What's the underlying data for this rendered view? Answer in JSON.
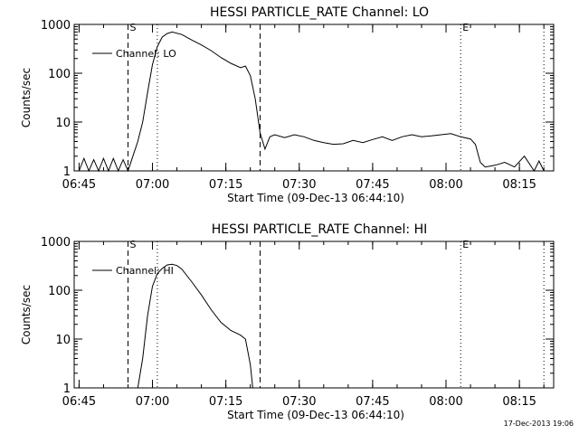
{
  "chart_data": [
    {
      "type": "line",
      "title": "HESSI PARTICLE_RATE Channel: LO",
      "xlabel": "Start Time (09-Dec-13 06:44:10)",
      "ylabel": "Counts/sec",
      "yscale": "log",
      "ylim": [
        1,
        1000
      ],
      "xlim": [
        "06:44",
        "08:22"
      ],
      "xticks": [
        "06:45",
        "07:00",
        "07:15",
        "07:30",
        "07:45",
        "08:00",
        "08:15"
      ],
      "yticks": [
        "1",
        "10",
        "100",
        "1000"
      ],
      "legend": {
        "label": "Channel: LO",
        "position": "top-left"
      },
      "markers": [
        {
          "label": "S",
          "time": "06:55",
          "style": "dashed"
        },
        {
          "label": "",
          "time": "07:01",
          "style": "dotted"
        },
        {
          "label": "",
          "time": "07:22",
          "style": "dashed"
        },
        {
          "label": "E",
          "time": "08:03",
          "style": "dotted"
        },
        {
          "label": "",
          "time": "08:20",
          "style": "dotted"
        }
      ],
      "series": [
        {
          "name": "Channel: LO",
          "points": [
            [
              "06:45",
              1
            ],
            [
              "06:46",
              1.8
            ],
            [
              "06:47",
              1
            ],
            [
              "06:48",
              1.7
            ],
            [
              "06:49",
              1
            ],
            [
              "06:50",
              1.8
            ],
            [
              "06:51",
              1
            ],
            [
              "06:52",
              1.8
            ],
            [
              "06:53",
              1
            ],
            [
              "06:54",
              1.7
            ],
            [
              "06:55",
              1
            ],
            [
              "06:56",
              2
            ],
            [
              "06:57",
              4
            ],
            [
              "06:58",
              10
            ],
            [
              "06:59",
              40
            ],
            [
              "07:00",
              150
            ],
            [
              "07:01",
              350
            ],
            [
              "07:02",
              550
            ],
            [
              "07:03",
              650
            ],
            [
              "07:04",
              700
            ],
            [
              "07:06",
              620
            ],
            [
              "07:08",
              480
            ],
            [
              "07:10",
              380
            ],
            [
              "07:12",
              290
            ],
            [
              "07:14",
              210
            ],
            [
              "07:16",
              160
            ],
            [
              "07:18",
              130
            ],
            [
              "07:19",
              140
            ],
            [
              "07:20",
              90
            ],
            [
              "07:21",
              30
            ],
            [
              "07:22",
              6
            ],
            [
              "07:23",
              2.8
            ],
            [
              "07:24",
              5
            ],
            [
              "07:25",
              5.5
            ],
            [
              "07:27",
              4.8
            ],
            [
              "07:29",
              5.5
            ],
            [
              "07:31",
              5
            ],
            [
              "07:33",
              4.2
            ],
            [
              "07:35",
              3.8
            ],
            [
              "07:37",
              3.5
            ],
            [
              "07:39",
              3.6
            ],
            [
              "07:41",
              4.2
            ],
            [
              "07:43",
              3.8
            ],
            [
              "07:45",
              4.4
            ],
            [
              "07:47",
              5
            ],
            [
              "07:49",
              4.2
            ],
            [
              "07:51",
              5
            ],
            [
              "07:53",
              5.5
            ],
            [
              "07:55",
              5
            ],
            [
              "07:57",
              5.2
            ],
            [
              "07:59",
              5.5
            ],
            [
              "08:01",
              5.8
            ],
            [
              "08:03",
              5
            ],
            [
              "08:05",
              4.5
            ],
            [
              "08:06",
              3.5
            ],
            [
              "08:07",
              1.5
            ],
            [
              "08:08",
              1.2
            ],
            [
              "08:10",
              1.3
            ],
            [
              "08:12",
              1.5
            ],
            [
              "08:14",
              1.2
            ],
            [
              "08:16",
              2
            ],
            [
              "08:18",
              1
            ],
            [
              "08:19",
              1.6
            ],
            [
              "08:20",
              1
            ]
          ]
        }
      ]
    },
    {
      "type": "line",
      "title": "HESSI PARTICLE_RATE Channel: HI",
      "xlabel": "Start Time (09-Dec-13 06:44:10)",
      "ylabel": "Counts/sec",
      "yscale": "log",
      "ylim": [
        1,
        1000
      ],
      "xlim": [
        "06:44",
        "08:22"
      ],
      "xticks": [
        "06:45",
        "07:00",
        "07:15",
        "07:30",
        "07:45",
        "08:00",
        "08:15"
      ],
      "yticks": [
        "1",
        "10",
        "100",
        "1000"
      ],
      "legend": {
        "label": "Channel: HI",
        "position": "top-left"
      },
      "markers": [
        {
          "label": "S",
          "time": "06:55",
          "style": "dashed"
        },
        {
          "label": "",
          "time": "07:01",
          "style": "dotted"
        },
        {
          "label": "",
          "time": "07:22",
          "style": "dashed"
        },
        {
          "label": "E",
          "time": "08:03",
          "style": "dotted"
        },
        {
          "label": "",
          "time": "08:20",
          "style": "dotted"
        }
      ],
      "series": [
        {
          "name": "Channel: HI",
          "points": [
            [
              "06:57",
              1
            ],
            [
              "06:58",
              4
            ],
            [
              "06:59",
              30
            ],
            [
              "07:00",
              120
            ],
            [
              "07:01",
              220
            ],
            [
              "07:02",
              280
            ],
            [
              "07:03",
              330
            ],
            [
              "07:04",
              340
            ],
            [
              "07:05",
              320
            ],
            [
              "07:06",
              270
            ],
            [
              "07:08",
              150
            ],
            [
              "07:10",
              80
            ],
            [
              "07:12",
              40
            ],
            [
              "07:14",
              22
            ],
            [
              "07:16",
              15
            ],
            [
              "07:18",
              12
            ],
            [
              "07:19",
              10
            ],
            [
              "07:20",
              3
            ],
            [
              "07:20.5",
              1
            ]
          ]
        }
      ]
    }
  ],
  "footer": {
    "timestamp": "17-Dec-2013 19:06"
  }
}
